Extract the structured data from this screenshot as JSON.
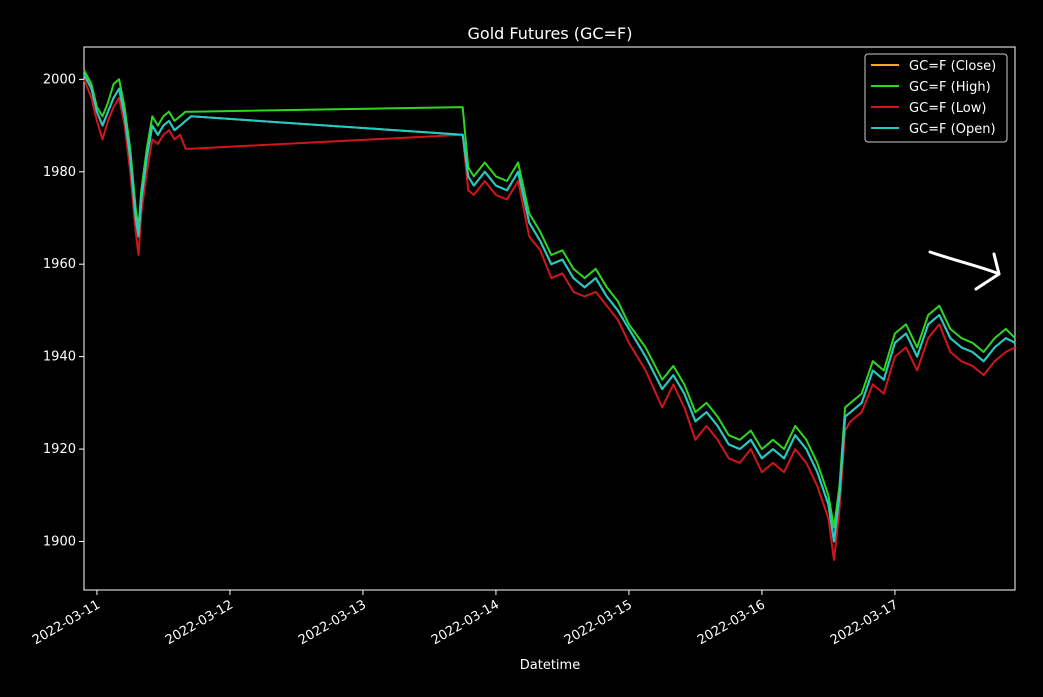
{
  "chart_data": {
    "type": "line",
    "title": "Gold Futures (GC=F)",
    "xlabel": "Datetime",
    "ylabel": "",
    "xlim": [
      "2022-03-10T21:40",
      "2022-03-17T21:40"
    ],
    "ylim": [
      1889.5,
      2007
    ],
    "x_ticks": [
      "2022-03-11",
      "2022-03-12",
      "2022-03-13",
      "2022-03-14",
      "2022-03-15",
      "2022-03-16",
      "2022-03-17"
    ],
    "y_ticks": [
      1900,
      1920,
      1940,
      1960,
      1980,
      2000
    ],
    "legend_position": "top-right",
    "grid": false,
    "background": "#000000",
    "series": [
      {
        "name": "GC=F (Close)",
        "color": "#f5a623"
      },
      {
        "name": "GC=F (High)",
        "color": "#2ed61f"
      },
      {
        "name": "GC=F (Low)",
        "color": "#d0161a"
      },
      {
        "name": "GC=F (Open)",
        "color": "#1ccccc"
      }
    ],
    "x": [
      "2022-03-10T21:40",
      "2022-03-10T23:00",
      "2022-03-11T00:00",
      "2022-03-11T01:00",
      "2022-03-11T02:00",
      "2022-03-11T03:00",
      "2022-03-11T04:00",
      "2022-03-11T05:00",
      "2022-03-11T06:00",
      "2022-03-11T07:00",
      "2022-03-11T07:30",
      "2022-03-11T08:00",
      "2022-03-11T09:00",
      "2022-03-11T10:00",
      "2022-03-11T11:00",
      "2022-03-11T12:00",
      "2022-03-11T13:00",
      "2022-03-11T14:00",
      "2022-03-11T15:00",
      "2022-03-11T16:00",
      "2022-03-11T17:00",
      "2022-03-13T18:00",
      "2022-03-13T19:00",
      "2022-03-13T20:00",
      "2022-03-13T22:00",
      "2022-03-14T00:00",
      "2022-03-14T02:00",
      "2022-03-14T04:00",
      "2022-03-14T06:00",
      "2022-03-14T08:00",
      "2022-03-14T10:00",
      "2022-03-14T12:00",
      "2022-03-14T14:00",
      "2022-03-14T16:00",
      "2022-03-14T18:00",
      "2022-03-14T20:00",
      "2022-03-14T22:00",
      "2022-03-15T00:00",
      "2022-03-15T03:00",
      "2022-03-15T06:00",
      "2022-03-15T08:00",
      "2022-03-15T10:00",
      "2022-03-15T12:00",
      "2022-03-15T14:00",
      "2022-03-15T16:00",
      "2022-03-15T18:00",
      "2022-03-15T20:00",
      "2022-03-15T22:00",
      "2022-03-16T00:00",
      "2022-03-16T02:00",
      "2022-03-16T04:00",
      "2022-03-16T06:00",
      "2022-03-16T08:00",
      "2022-03-16T10:00",
      "2022-03-16T12:00",
      "2022-03-16T13:00",
      "2022-03-16T14:00",
      "2022-03-16T15:00",
      "2022-03-16T16:00",
      "2022-03-16T18:00",
      "2022-03-16T20:00",
      "2022-03-16T22:00",
      "2022-03-17T00:00",
      "2022-03-17T02:00",
      "2022-03-17T04:00",
      "2022-03-17T06:00",
      "2022-03-17T08:00",
      "2022-03-17T10:00",
      "2022-03-17T12:00",
      "2022-03-17T14:00",
      "2022-03-17T16:00",
      "2022-03-17T18:00",
      "2022-03-17T20:00",
      "2022-03-17T21:40"
    ],
    "y_close": [
      2001,
      1998,
      1993,
      1990,
      1993,
      1996,
      1998,
      1992,
      1983,
      1970,
      1966,
      1974,
      1983,
      1990,
      1988,
      1990,
      1991,
      1989,
      1990,
      1991,
      1992,
      1988,
      1979,
      1977,
      1980,
      1977,
      1976,
      1980,
      1969,
      1965,
      1960,
      1961,
      1957,
      1955,
      1957,
      1953,
      1950,
      1946,
      1940,
      1933,
      1936,
      1932,
      1926,
      1928,
      1925,
      1921,
      1920,
      1922,
      1918,
      1920,
      1918,
      1923,
      1920,
      1915,
      1908,
      1900,
      1910,
      1927,
      1928,
      1930,
      1937,
      1935,
      1943,
      1945,
      1940,
      1947,
      1949,
      1944,
      1942,
      1941,
      1939,
      1942,
      1944,
      1943
    ],
    "y_high": [
      2002,
      1999,
      1994,
      1992,
      1995,
      1999,
      2000,
      1994,
      1985,
      1972,
      1968,
      1976,
      1985,
      1992,
      1990,
      1992,
      1993,
      1991,
      1992,
      1993,
      1993,
      1994,
      1981,
      1979,
      1982,
      1979,
      1978,
      1982,
      1971,
      1967,
      1962,
      1963,
      1959,
      1957,
      1959,
      1955,
      1952,
      1947,
      1942,
      1935,
      1938,
      1934,
      1928,
      1930,
      1927,
      1923,
      1922,
      1924,
      1920,
      1922,
      1920,
      1925,
      1922,
      1917,
      1910,
      1903,
      1912,
      1929,
      1930,
      1932,
      1939,
      1937,
      1945,
      1947,
      1942,
      1949,
      1951,
      1946,
      1944,
      1943,
      1941,
      1944,
      1946,
      1944
    ],
    "y_low": [
      2000,
      1996,
      1991,
      1987,
      1991,
      1994,
      1996,
      1990,
      1980,
      1967,
      1962,
      1971,
      1980,
      1987,
      1986,
      1988,
      1989,
      1987,
      1988,
      1985,
      1985,
      1988,
      1976,
      1975,
      1978,
      1975,
      1974,
      1978,
      1966,
      1963,
      1957,
      1958,
      1954,
      1953,
      1954,
      1951,
      1948,
      1943,
      1937,
      1929,
      1934,
      1929,
      1922,
      1925,
      1922,
      1918,
      1917,
      1920,
      1915,
      1917,
      1915,
      1920,
      1917,
      1912,
      1905,
      1896,
      1907,
      1924,
      1926,
      1928,
      1934,
      1932,
      1940,
      1942,
      1937,
      1944,
      1947,
      1941,
      1939,
      1938,
      1936,
      1939,
      1941,
      1942
    ],
    "y_open": [
      2001,
      1998,
      1993,
      1990,
      1993,
      1996,
      1998,
      1992,
      1983,
      1970,
      1966,
      1974,
      1983,
      1990,
      1988,
      1990,
      1991,
      1989,
      1990,
      1991,
      1992,
      1988,
      1979,
      1977,
      1980,
      1977,
      1976,
      1980,
      1969,
      1965,
      1960,
      1961,
      1957,
      1955,
      1957,
      1953,
      1950,
      1946,
      1940,
      1933,
      1936,
      1932,
      1926,
      1928,
      1925,
      1921,
      1920,
      1922,
      1918,
      1920,
      1918,
      1923,
      1920,
      1915,
      1908,
      1900,
      1910,
      1927,
      1928,
      1930,
      1937,
      1935,
      1943,
      1945,
      1940,
      1947,
      1949,
      1944,
      1942,
      1941,
      1939,
      1942,
      1944,
      1943
    ]
  }
}
